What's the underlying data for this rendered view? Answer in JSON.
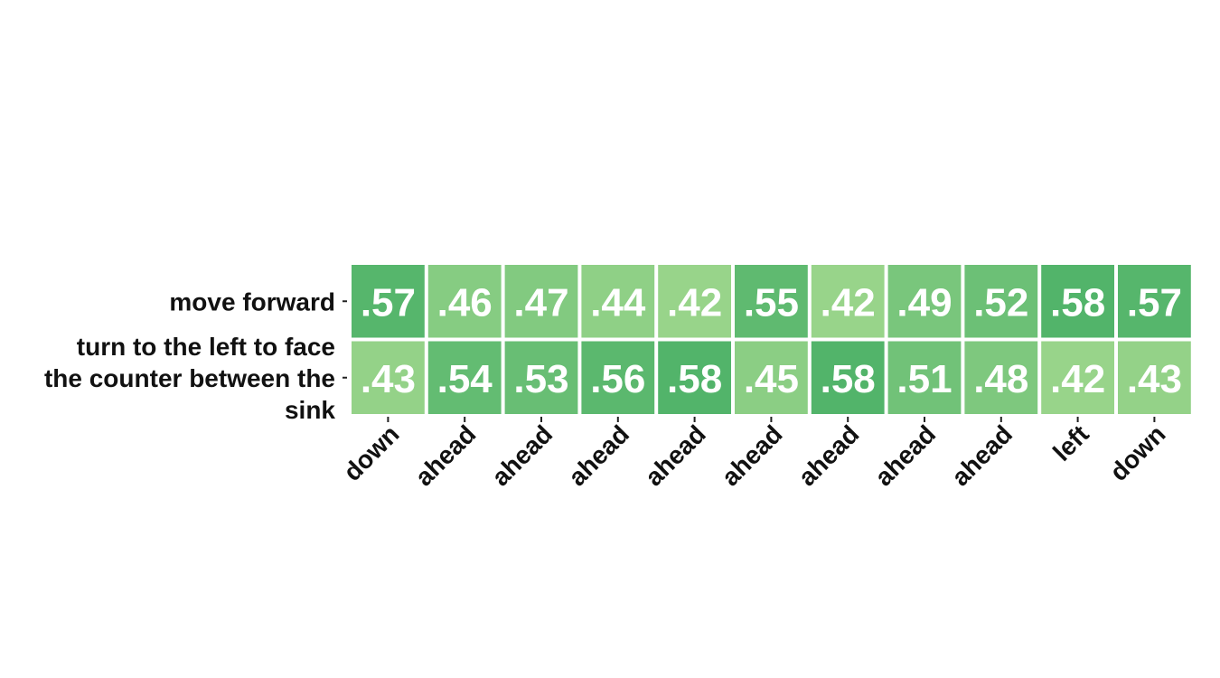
{
  "chart_data": {
    "type": "heatmap",
    "rows": [
      "move forward",
      "turn to the left to face the counter between the sink"
    ],
    "row_label_lines": [
      [
        "move forward"
      ],
      [
        "turn to the left to face",
        "the counter between the",
        "sink"
      ]
    ],
    "columns": [
      "down",
      "ahead",
      "ahead",
      "ahead",
      "ahead",
      "ahead",
      "ahead",
      "ahead",
      "ahead",
      "left",
      "down"
    ],
    "values": [
      [
        0.57,
        0.46,
        0.47,
        0.44,
        0.42,
        0.55,
        0.42,
        0.49,
        0.52,
        0.58,
        0.57
      ],
      [
        0.43,
        0.54,
        0.53,
        0.56,
        0.58,
        0.45,
        0.58,
        0.51,
        0.48,
        0.42,
        0.43
      ]
    ],
    "value_labels": [
      [
        ".57",
        ".46",
        ".47",
        ".44",
        ".42",
        ".55",
        ".42",
        ".49",
        ".52",
        ".58",
        ".57"
      ],
      [
        ".43",
        ".54",
        ".53",
        ".56",
        ".58",
        ".45",
        ".58",
        ".51",
        ".48",
        ".42",
        ".43"
      ]
    ],
    "color_scale": {
      "min": 0.42,
      "max": 0.58,
      "low_color": "#98d48a",
      "high_color": "#52b46a"
    },
    "title": "",
    "xlabel": "",
    "ylabel": ""
  }
}
